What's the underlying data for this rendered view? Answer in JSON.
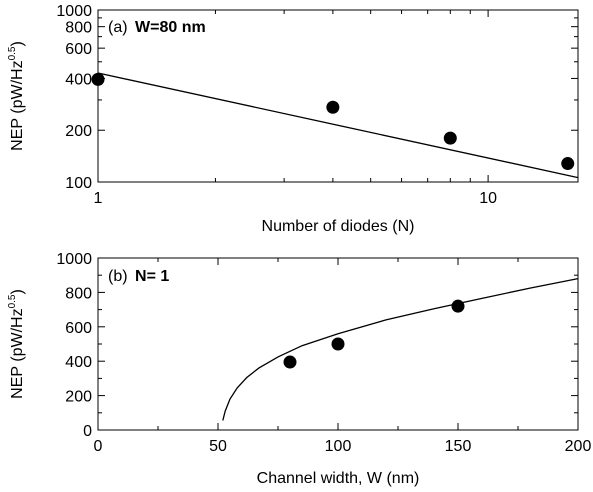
{
  "chart_data": [
    {
      "type": "scatter",
      "panel_label": "(a)",
      "panel_title": "W=80 nm",
      "xlabel": "Number of diodes (N)",
      "ylabel_main": "NEP (pW/Hz",
      "ylabel_sup": "0.5",
      "ylabel_close": ")",
      "xscale": "log",
      "yscale": "log",
      "xlim": [
        1,
        17
      ],
      "ylim": [
        100,
        1000
      ],
      "xticks": [
        1,
        10
      ],
      "xtick_labels": [
        "1",
        "10"
      ],
      "yticks": [
        100,
        200,
        400,
        600,
        800,
        1000
      ],
      "ytick_labels": [
        "100",
        "200",
        "400",
        "600",
        "800",
        "1000"
      ],
      "series": [
        {
          "x": [
            1,
            4,
            8,
            16
          ],
          "y": [
            395,
            272,
            180,
            128
          ]
        }
      ],
      "fit_line": {
        "x": [
          1,
          17
        ],
        "y": [
          430,
          106
        ]
      },
      "marker_color": "#000000"
    },
    {
      "type": "scatter",
      "panel_label": "(b)",
      "panel_title": "N= 1",
      "xlabel": "Channel width, W (nm)",
      "ylabel_main": "NEP (pW/Hz",
      "ylabel_sup": "0.5",
      "ylabel_close": ")",
      "xlim": [
        0,
        200
      ],
      "ylim": [
        0,
        1000
      ],
      "xticks": [
        0,
        50,
        100,
        150,
        200
      ],
      "xtick_labels": [
        "0",
        "50",
        "100",
        "150",
        "200"
      ],
      "yticks": [
        0,
        200,
        400,
        600,
        800,
        1000
      ],
      "ytick_labels": [
        "0",
        "200",
        "400",
        "600",
        "800",
        "1000"
      ],
      "series": [
        {
          "x": [
            80,
            100,
            150
          ],
          "y": [
            395,
            500,
            720
          ]
        }
      ],
      "fit_curve": {
        "x": [
          52,
          53,
          55,
          58,
          62,
          67,
          75,
          85,
          100,
          120,
          140,
          160,
          180,
          200
        ],
        "y": [
          55,
          110,
          180,
          245,
          305,
          360,
          425,
          490,
          560,
          640,
          705,
          765,
          825,
          880
        ]
      },
      "marker_color": "#000000"
    }
  ]
}
